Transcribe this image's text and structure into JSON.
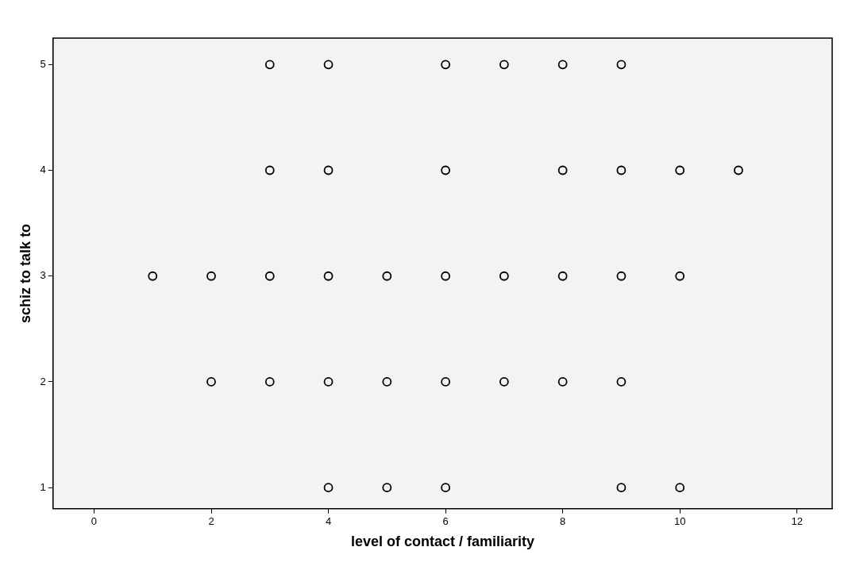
{
  "chart_data": {
    "type": "scatter",
    "xlabel": "level of contact / familiarity",
    "ylabel": "schiz to talk to",
    "x": [
      3,
      4,
      6,
      7,
      8,
      9,
      3,
      4,
      6,
      8,
      9,
      10,
      11,
      1,
      2,
      3,
      4,
      5,
      6,
      7,
      8,
      9,
      10,
      2,
      3,
      4,
      5,
      6,
      7,
      8,
      9,
      4,
      5,
      6,
      9,
      10
    ],
    "series": [
      {
        "color": "#000000",
        "values": [
          5,
          5,
          5,
          5,
          5,
          5,
          4,
          4,
          4,
          4,
          4,
          4,
          4,
          3,
          3,
          3,
          3,
          3,
          3,
          3,
          3,
          3,
          3,
          2,
          2,
          2,
          2,
          2,
          2,
          2,
          2,
          1,
          1,
          1,
          1,
          1
        ]
      }
    ],
    "xlim": [
      -0.7,
      12.6
    ],
    "ylim": [
      0.8,
      5.25
    ],
    "xticks": [
      0,
      2,
      4,
      6,
      8,
      10,
      12
    ],
    "yticks": [
      1,
      2,
      3,
      4,
      5
    ],
    "grid": false,
    "legend": false,
    "marker": "circle"
  }
}
